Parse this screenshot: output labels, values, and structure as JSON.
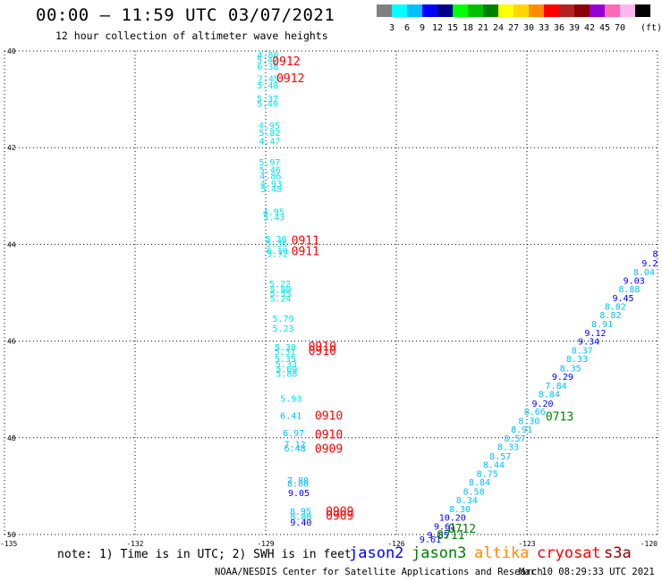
{
  "header": {
    "title": "00:00 – 11:59 UTC 03/07/2021",
    "subtitle": "12 hour collection of altimeter wave heights"
  },
  "legend": {
    "colors": [
      "#808080",
      "#00ffff",
      "#00bfff",
      "#0000ff",
      "#00008b",
      "#00ff00",
      "#00c000",
      "#008000",
      "#ffff00",
      "#ffd700",
      "#ff8c00",
      "#ff0000",
      "#b22222",
      "#8b0000",
      "#9400d3",
      "#ff69b4",
      "#ffb6f0",
      "#000000"
    ],
    "labels": [
      "3",
      "6",
      "9",
      "12",
      "15",
      "18",
      "21",
      "24",
      "27",
      "30",
      "33",
      "36",
      "39",
      "42",
      "45",
      "70"
    ],
    "unit": "(ft)"
  },
  "chart_data": {
    "type": "scatter",
    "xlim": [
      -135,
      -120
    ],
    "ylim": [
      50,
      40
    ],
    "x_ticks": [
      "-135",
      "-132",
      "-129",
      "-126",
      "-123",
      "-120"
    ],
    "y_ticks": [
      "40",
      "42",
      "44",
      "46",
      "48",
      "50"
    ],
    "grid": true,
    "swh_points": [
      {
        "x": -128.95,
        "y": 40.07,
        "v": "4.80",
        "c": "#00e5ee"
      },
      {
        "x": -128.96,
        "y": 40.18,
        "v": "5.42",
        "c": "#00e5ee"
      },
      {
        "x": -128.95,
        "y": 40.31,
        "v": "6.38",
        "c": "#00e5ee"
      },
      {
        "x": -128.94,
        "y": 40.56,
        "v": "7.45",
        "c": "#00e5ee"
      },
      {
        "x": -128.95,
        "y": 40.7,
        "v": "5.48",
        "c": "#00e5ee"
      },
      {
        "x": -128.96,
        "y": 40.98,
        "v": "5.37",
        "c": "#00e5ee"
      },
      {
        "x": -128.96,
        "y": 41.08,
        "v": "5.40",
        "c": "#00e5ee"
      },
      {
        "x": -128.92,
        "y": 41.53,
        "v": "4.95",
        "c": "#00e5ee"
      },
      {
        "x": -128.91,
        "y": 41.68,
        "v": "5.82",
        "c": "#00e5ee"
      },
      {
        "x": -128.91,
        "y": 41.86,
        "v": "4.47",
        "c": "#00e5ee"
      },
      {
        "x": -128.91,
        "y": 42.29,
        "v": "5.97",
        "c": "#00e5ee"
      },
      {
        "x": -128.9,
        "y": 42.45,
        "v": "5.46",
        "c": "#00e5ee"
      },
      {
        "x": -128.89,
        "y": 42.58,
        "v": "4.86",
        "c": "#00e5ee"
      },
      {
        "x": -128.88,
        "y": 42.74,
        "v": "4.93",
        "c": "#00e5ee"
      },
      {
        "x": -128.87,
        "y": 42.85,
        "v": "5.48",
        "c": "#00e5ee"
      },
      {
        "x": -128.82,
        "y": 43.32,
        "v": "4.95",
        "c": "#00e5ee"
      },
      {
        "x": -128.81,
        "y": 43.43,
        "v": "5.43",
        "c": "#00e5ee"
      },
      {
        "x": -128.76,
        "y": 43.88,
        "v": "5.36",
        "c": "#00e5ee"
      },
      {
        "x": -128.75,
        "y": 43.97,
        "v": "5.36",
        "c": "#00e5ee"
      },
      {
        "x": -128.74,
        "y": 44.12,
        "v": "6.10",
        "c": "#00e5ee"
      },
      {
        "x": -128.73,
        "y": 44.19,
        "v": "5.72",
        "c": "#00e5ee"
      },
      {
        "x": -128.67,
        "y": 44.81,
        "v": "5.22",
        "c": "#00e5ee"
      },
      {
        "x": -128.66,
        "y": 44.93,
        "v": "5.80",
        "c": "#00e5ee"
      },
      {
        "x": -128.66,
        "y": 45.01,
        "v": "5.55",
        "c": "#00e5ee"
      },
      {
        "x": -128.66,
        "y": 45.11,
        "v": "5.24",
        "c": "#00e5ee"
      },
      {
        "x": -128.6,
        "y": 45.53,
        "v": "5.79",
        "c": "#00e5ee"
      },
      {
        "x": -128.6,
        "y": 45.73,
        "v": "5.23",
        "c": "#00e5ee"
      },
      {
        "x": -128.55,
        "y": 46.12,
        "v": "5.30",
        "c": "#00e5ee"
      },
      {
        "x": -128.56,
        "y": 46.21,
        "v": "5.31",
        "c": "#00e5ee"
      },
      {
        "x": -128.55,
        "y": 46.36,
        "v": "5.35",
        "c": "#00e5ee"
      },
      {
        "x": -128.53,
        "y": 46.47,
        "v": "5.33",
        "c": "#00e5ee"
      },
      {
        "x": -128.52,
        "y": 46.57,
        "v": "5.69",
        "c": "#00e5ee"
      },
      {
        "x": -128.52,
        "y": 46.66,
        "v": "5.88",
        "c": "#00e5ee"
      },
      {
        "x": -128.42,
        "y": 47.18,
        "v": "5.93",
        "c": "#00e5ee"
      },
      {
        "x": -128.42,
        "y": 47.53,
        "v": "6.41",
        "c": "#00bfff"
      },
      {
        "x": -128.36,
        "y": 47.89,
        "v": "6.97",
        "c": "#00bfff"
      },
      {
        "x": -128.33,
        "y": 48.12,
        "v": "7.12",
        "c": "#00bfff"
      },
      {
        "x": -128.33,
        "y": 48.21,
        "v": "6.48",
        "c": "#00bfff"
      },
      {
        "x": -128.26,
        "y": 48.87,
        "v": "7.80",
        "c": "#00bfff"
      },
      {
        "x": -128.26,
        "y": 48.94,
        "v": "8.80",
        "c": "#00bfff"
      },
      {
        "x": -128.24,
        "y": 49.13,
        "v": "9.05",
        "c": "#0000ff"
      },
      {
        "x": -128.2,
        "y": 49.51,
        "v": "8.95",
        "c": "#00bfff"
      },
      {
        "x": -128.19,
        "y": 49.62,
        "v": "8.88",
        "c": "#00bfff"
      },
      {
        "x": -128.19,
        "y": 49.74,
        "v": "9.40",
        "c": "#0000ff"
      },
      {
        "x": -120.05,
        "y": 44.19,
        "v": "8",
        "c": "#0000ff"
      },
      {
        "x": -120.18,
        "y": 44.38,
        "v": "9.2",
        "c": "#0000ff"
      },
      {
        "x": -120.31,
        "y": 44.57,
        "v": "8.04",
        "c": "#00bfff"
      },
      {
        "x": -120.54,
        "y": 44.74,
        "v": "9.03",
        "c": "#0000ff"
      },
      {
        "x": -120.65,
        "y": 44.92,
        "v": "8.88",
        "c": "#00bfff"
      },
      {
        "x": -120.79,
        "y": 45.1,
        "v": "9.45",
        "c": "#0000ff"
      },
      {
        "x": -120.97,
        "y": 45.28,
        "v": "8.82",
        "c": "#00bfff"
      },
      {
        "x": -121.08,
        "y": 45.45,
        "v": "8.82",
        "c": "#00bfff"
      },
      {
        "x": -121.27,
        "y": 45.64,
        "v": "8.91",
        "c": "#00bfff"
      },
      {
        "x": -121.43,
        "y": 45.82,
        "v": "9.12",
        "c": "#0000ff"
      },
      {
        "x": -121.58,
        "y": 46.0,
        "v": "9.34",
        "c": "#0000ff"
      },
      {
        "x": -121.73,
        "y": 46.18,
        "v": "8.37",
        "c": "#00bfff"
      },
      {
        "x": -121.85,
        "y": 46.36,
        "v": "8.33",
        "c": "#00bfff"
      },
      {
        "x": -122.0,
        "y": 46.55,
        "v": "8.35",
        "c": "#00bfff"
      },
      {
        "x": -122.18,
        "y": 46.73,
        "v": "9.29",
        "c": "#0000ff"
      },
      {
        "x": -122.33,
        "y": 46.91,
        "v": "7.84",
        "c": "#00bfff"
      },
      {
        "x": -122.49,
        "y": 47.09,
        "v": "8.84",
        "c": "#00bfff"
      },
      {
        "x": -122.64,
        "y": 47.28,
        "v": "9.20",
        "c": "#0000ff"
      },
      {
        "x": -122.82,
        "y": 47.45,
        "v": "8.66",
        "c": "#00bfff"
      },
      {
        "x": -122.95,
        "y": 47.64,
        "v": "8.30",
        "c": "#00bfff"
      },
      {
        "x": -123.12,
        "y": 47.82,
        "v": "8.91",
        "c": "#00bfff"
      },
      {
        "x": -123.28,
        "y": 48.0,
        "v": "8.57",
        "c": "#00bfff"
      },
      {
        "x": -123.43,
        "y": 48.18,
        "v": "8.33",
        "c": "#00bfff"
      },
      {
        "x": -123.61,
        "y": 48.37,
        "v": "8.57",
        "c": "#00bfff"
      },
      {
        "x": -123.76,
        "y": 48.55,
        "v": "8.44",
        "c": "#00bfff"
      },
      {
        "x": -123.91,
        "y": 48.73,
        "v": "8.75",
        "c": "#00bfff"
      },
      {
        "x": -124.09,
        "y": 48.91,
        "v": "8.84",
        "c": "#00bfff"
      },
      {
        "x": -124.22,
        "y": 49.1,
        "v": "8.58",
        "c": "#00bfff"
      },
      {
        "x": -124.38,
        "y": 49.28,
        "v": "8.34",
        "c": "#00bfff"
      },
      {
        "x": -124.54,
        "y": 49.46,
        "v": "8.30",
        "c": "#00bfff"
      },
      {
        "x": -124.71,
        "y": 49.64,
        "v": "10.20",
        "c": "#0000ff"
      },
      {
        "x": -124.89,
        "y": 49.82,
        "v": "9.61",
        "c": "#0000ff"
      },
      {
        "x": -125.04,
        "y": 50.0,
        "v": "9.85",
        "c": "#0000ff"
      },
      {
        "x": -125.22,
        "y": 50.09,
        "v": "9.61",
        "c": "#0000ff"
      }
    ],
    "time_labels": [
      {
        "x": -128.53,
        "y": 40.2,
        "t": "0912",
        "c": "#ff0000"
      },
      {
        "x": -128.43,
        "y": 40.55,
        "t": "0912",
        "c": "#ff0000"
      },
      {
        "x": -128.09,
        "y": 43.91,
        "t": "0911",
        "c": "#ff0000"
      },
      {
        "x": -128.09,
        "y": 44.13,
        "t": "0911",
        "c": "#ff0000"
      },
      {
        "x": -127.7,
        "y": 46.1,
        "t": "0910",
        "c": "#ff0000"
      },
      {
        "x": -127.7,
        "y": 46.19,
        "t": "0910",
        "c": "#ff0000"
      },
      {
        "x": -127.55,
        "y": 47.53,
        "t": "0910",
        "c": "#ff0000"
      },
      {
        "x": -127.55,
        "y": 47.92,
        "t": "0910",
        "c": "#ff0000"
      },
      {
        "x": -127.55,
        "y": 48.22,
        "t": "0909",
        "c": "#ff0000"
      },
      {
        "x": -127.3,
        "y": 49.51,
        "t": "0909",
        "c": "#ff0000"
      },
      {
        "x": -127.3,
        "y": 49.6,
        "t": "0909",
        "c": "#ff0000"
      },
      {
        "x": -122.25,
        "y": 47.55,
        "t": "0713",
        "c": "#008000"
      },
      {
        "x": -124.49,
        "y": 49.87,
        "t": "0712",
        "c": "#008000"
      },
      {
        "x": -124.75,
        "y": 50.0,
        "t": "0711",
        "c": "#008000"
      }
    ]
  },
  "footer": {
    "note": "note: 1) Time is in UTC; 2) SWH is in feet",
    "satellites": [
      {
        "name": "jason2",
        "color": "#0000ff"
      },
      {
        "name": "jason3",
        "color": "#008000"
      },
      {
        "name": "altika",
        "color": "#ff8c00"
      },
      {
        "name": "cryosat",
        "color": "#ff0000"
      },
      {
        "name": "s3a",
        "color": "#8b0000"
      }
    ],
    "credit": "NOAA/NESDIS Center for Satellite Applications and Research",
    "timestamp": "Mar 10 08:29:33 UTC 2021"
  }
}
